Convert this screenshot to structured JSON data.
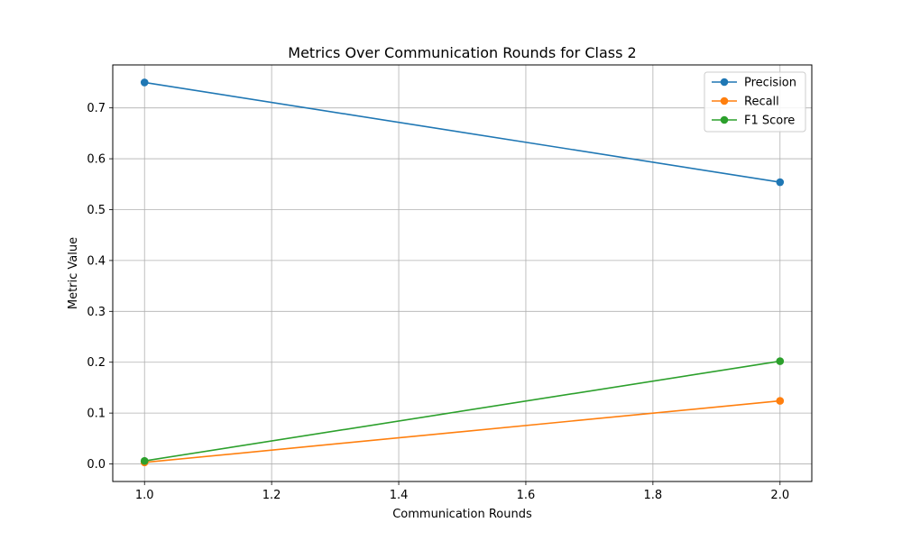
{
  "chart_data": {
    "type": "line",
    "title": "Metrics Over Communication Rounds for Class 2",
    "xlabel": "Communication Rounds",
    "ylabel": "Metric Value",
    "x": [
      1.0,
      2.0
    ],
    "xlim": [
      0.95,
      2.05
    ],
    "ylim": [
      -0.0345,
      0.7845
    ],
    "xticks": [
      "1.0",
      "1.2",
      "1.4",
      "1.6",
      "1.8",
      "2.0"
    ],
    "yticks": [
      "0.0",
      "0.1",
      "0.2",
      "0.3",
      "0.4",
      "0.5",
      "0.6",
      "0.7"
    ],
    "grid": true,
    "legend_position": "top-right",
    "series": [
      {
        "name": "Precision",
        "values": [
          0.75,
          0.554
        ],
        "color": "#1f77b4"
      },
      {
        "name": "Recall",
        "values": [
          0.003,
          0.124
        ],
        "color": "#ff7f0e"
      },
      {
        "name": "F1 Score",
        "values": [
          0.006,
          0.202
        ],
        "color": "#2ca02c"
      }
    ]
  }
}
